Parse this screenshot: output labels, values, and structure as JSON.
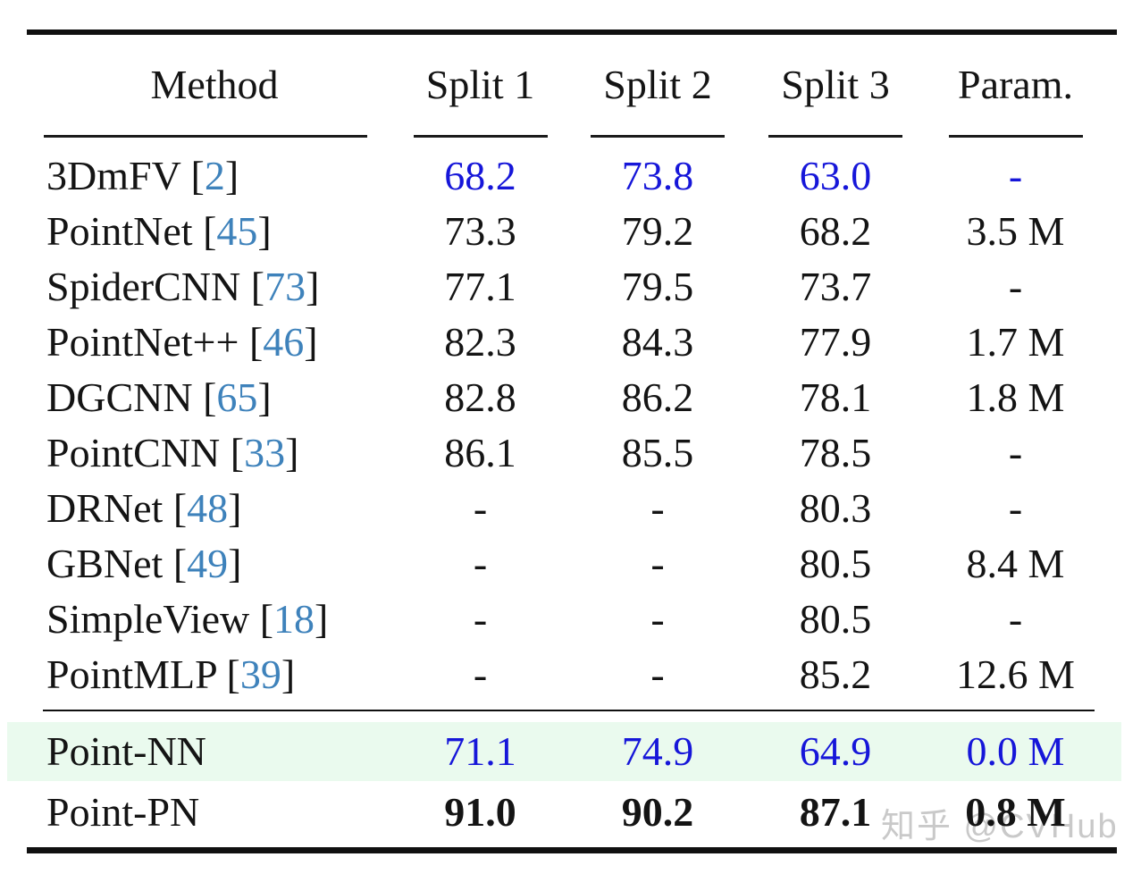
{
  "colors": {
    "text": "#141414",
    "rule": "#101010",
    "value_blue": "#1616d9",
    "cite_blue": "#3e82bb",
    "highlight": "#eafaee",
    "watermark": "#c9c9c9"
  },
  "watermark": {
    "text": "知乎 @CVHub"
  },
  "chart_data": {
    "type": "table",
    "columns": [
      "Method",
      "Split 1",
      "Split 2",
      "Split 3",
      "Param."
    ],
    "rows": [
      [
        "3DmFV [2]",
        "68.2",
        "73.8",
        "63.0",
        "-"
      ],
      [
        "PointNet [45]",
        "73.3",
        "79.2",
        "68.2",
        "3.5 M"
      ],
      [
        "SpiderCNN [73]",
        "77.1",
        "79.5",
        "73.7",
        "-"
      ],
      [
        "PointNet++ [46]",
        "82.3",
        "84.3",
        "77.9",
        "1.7 M"
      ],
      [
        "DGCNN [65]",
        "82.8",
        "86.2",
        "78.1",
        "1.8 M"
      ],
      [
        "PointCNN [33]",
        "86.1",
        "85.5",
        "78.5",
        "-"
      ],
      [
        "DRNet [48]",
        "-",
        "-",
        "80.3",
        "-"
      ],
      [
        "GBNet [49]",
        "-",
        "-",
        "80.5",
        "8.4 M"
      ],
      [
        "SimpleView [18]",
        "-",
        "-",
        "80.5",
        "-"
      ],
      [
        "PointMLP [39]",
        "-",
        "-",
        "85.2",
        "12.6 M"
      ],
      [
        "Point-NN",
        "71.1",
        "74.9",
        "64.9",
        "0.0 M"
      ],
      [
        "Point-PN",
        "91.0",
        "90.2",
        "87.1",
        "0.8 M"
      ]
    ]
  },
  "table": {
    "headers": {
      "method": "Method",
      "split1": "Split 1",
      "split2": "Split 2",
      "split3": "Split 3",
      "param": "Param."
    },
    "rows": [
      {
        "name": "3DmFV",
        "cite": "2",
        "split1": "68.2",
        "split2": "73.8",
        "split3": "63.0",
        "param": "-"
      },
      {
        "name": "PointNet",
        "cite": "45",
        "split1": "73.3",
        "split2": "79.2",
        "split3": "68.2",
        "param": "3.5 M"
      },
      {
        "name": "SpiderCNN",
        "cite": "73",
        "split1": "77.1",
        "split2": "79.5",
        "split3": "73.7",
        "param": "-"
      },
      {
        "name": "PointNet++",
        "cite": "46",
        "split1": "82.3",
        "split2": "84.3",
        "split3": "77.9",
        "param": "1.7 M"
      },
      {
        "name": "DGCNN",
        "cite": "65",
        "split1": "82.8",
        "split2": "86.2",
        "split3": "78.1",
        "param": "1.8 M"
      },
      {
        "name": "PointCNN",
        "cite": "33",
        "split1": "86.1",
        "split2": "85.5",
        "split3": "78.5",
        "param": "-"
      },
      {
        "name": "DRNet",
        "cite": "48",
        "split1": "-",
        "split2": "-",
        "split3": "80.3",
        "param": "-"
      },
      {
        "name": "GBNet",
        "cite": "49",
        "split1": "-",
        "split2": "-",
        "split3": "80.5",
        "param": "8.4 M"
      },
      {
        "name": "SimpleView",
        "cite": "18",
        "split1": "-",
        "split2": "-",
        "split3": "80.5",
        "param": "-"
      },
      {
        "name": "PointMLP",
        "cite": "39",
        "split1": "-",
        "split2": "-",
        "split3": "85.2",
        "param": "12.6 M"
      },
      {
        "name": "Point-NN",
        "split1": "71.1",
        "split2": "74.9",
        "split3": "64.9",
        "param": "0.0 M"
      },
      {
        "name": "Point-PN",
        "split1": "91.0",
        "split2": "90.2",
        "split3": "87.1",
        "param": "0.8 M"
      }
    ]
  }
}
